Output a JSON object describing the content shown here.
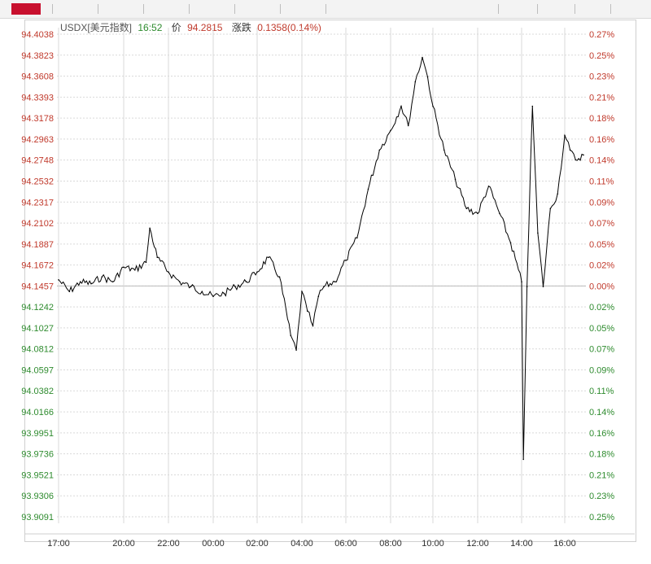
{
  "header": {
    "symbol": "USDX[美元指数]",
    "time": "16:52",
    "price_label": "价",
    "price": "94.2815",
    "change_label": "涨跌",
    "change": "0.1358(0.14%)"
  },
  "colors": {
    "up": "#c0392b",
    "down": "#2e8b2e",
    "line": "#000000",
    "grid": "#d9d9d9"
  },
  "chart_data": {
    "type": "line",
    "series": [
      {
        "x": [
          "17:00",
          "17:30",
          "18:00",
          "18:30",
          "19:00",
          "19:30",
          "20:00",
          "20:30",
          "21:00",
          "21:10",
          "21:30",
          "22:00",
          "22:30",
          "23:00",
          "23:30",
          "00:00",
          "00:30",
          "01:00",
          "01:30",
          "02:00",
          "02:30",
          "03:00",
          "03:30",
          "03:45",
          "04:00",
          "04:15",
          "04:30",
          "04:45",
          "05:00",
          "05:30",
          "06:00",
          "06:30",
          "07:00",
          "07:30",
          "08:00",
          "08:30",
          "08:50",
          "09:10",
          "09:30",
          "09:45",
          "10:00",
          "10:30",
          "11:00",
          "11:30",
          "12:00",
          "12:30",
          "13:00",
          "13:30",
          "14:00",
          "14:05",
          "14:15",
          "14:30",
          "14:45",
          "15:00",
          "15:20",
          "15:40",
          "16:00",
          "16:15",
          "16:30",
          "16:52"
        ],
        "y": [
          94.152,
          94.14,
          94.15,
          94.148,
          94.155,
          94.15,
          94.165,
          94.162,
          94.17,
          94.205,
          94.175,
          94.16,
          94.15,
          94.145,
          94.14,
          94.135,
          94.138,
          94.145,
          94.15,
          94.16,
          94.175,
          94.155,
          94.095,
          94.08,
          94.14,
          94.12,
          94.105,
          94.135,
          94.145,
          94.15,
          94.172,
          94.195,
          94.245,
          94.285,
          94.305,
          94.33,
          94.31,
          94.355,
          94.38,
          94.36,
          94.33,
          94.285,
          94.255,
          94.225,
          94.22,
          94.248,
          94.22,
          94.19,
          94.15,
          93.968,
          94.145,
          94.33,
          94.2,
          94.145,
          94.225,
          94.24,
          94.3,
          94.285,
          94.275,
          94.28
        ]
      }
    ],
    "y_ticks": [
      "94.4038",
      "94.3823",
      "94.3608",
      "94.3393",
      "94.3178",
      "94.2963",
      "94.2748",
      "94.2532",
      "94.2317",
      "94.2102",
      "94.1887",
      "94.1672",
      "94.1457",
      "94.1242",
      "94.1027",
      "94.0812",
      "94.0597",
      "94.0382",
      "94.0166",
      "93.9951",
      "93.9736",
      "93.9521",
      "93.9306",
      "93.9091"
    ],
    "pct_ticks": [
      "0.27%",
      "0.25%",
      "0.23%",
      "0.21%",
      "0.18%",
      "0.16%",
      "0.14%",
      "0.11%",
      "0.09%",
      "0.07%",
      "0.05%",
      "0.02%",
      "0.00%",
      "0.02%",
      "0.05%",
      "0.07%",
      "0.09%",
      "0.11%",
      "0.14%",
      "0.16%",
      "0.18%",
      "0.21%",
      "0.23%",
      "0.25%"
    ],
    "x_ticks": [
      "17:00",
      "20:00",
      "22:00",
      "00:00",
      "02:00",
      "04:00",
      "06:00",
      "08:00",
      "10:00",
      "12:00",
      "14:00",
      "16:00"
    ],
    "reference": 94.1457,
    "ylim": [
      93.9091,
      94.4038
    ],
    "grid": true
  }
}
